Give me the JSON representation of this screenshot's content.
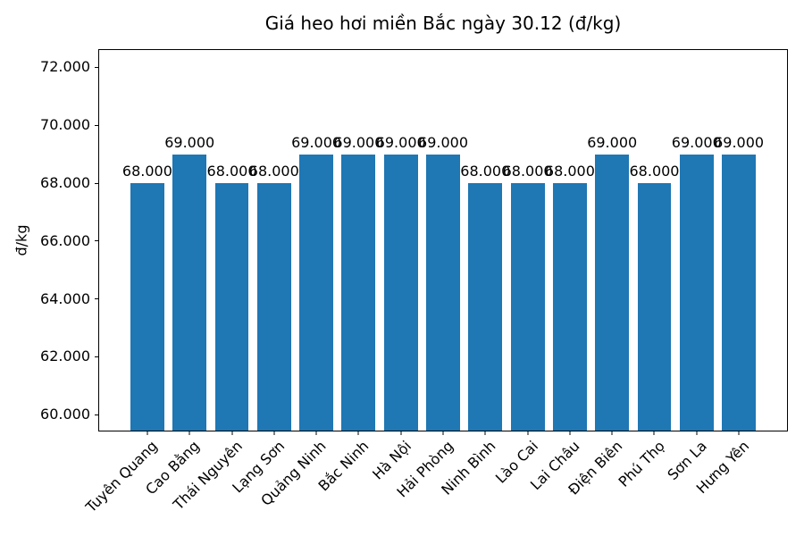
{
  "chart_data": {
    "type": "bar",
    "title": "Giá heo hơi miền Bắc ngày 30.12 (đ/kg)",
    "ylabel": "đ/kg",
    "xlabel": "",
    "categories": [
      "Tuyên Quang",
      "Cao Bằng",
      "Thái Nguyên",
      "Lạng Sơn",
      "Quảng Ninh",
      "Bắc Ninh",
      "Hà Nội",
      "Hải Phòng",
      "Ninh Bình",
      "Lào Cai",
      "Lai Châu",
      "Điện Biên",
      "Phú Thọ",
      "Sơn La",
      "Hưng Yên"
    ],
    "values": [
      68000,
      69000,
      68000,
      68000,
      69000,
      69000,
      69000,
      69000,
      68000,
      68000,
      68000,
      69000,
      68000,
      69000,
      69000
    ],
    "bar_labels": [
      "68.000",
      "69.000",
      "68.000",
      "68.000",
      "69.000",
      "69.000",
      "69.000",
      "69.000",
      "68.000",
      "68.000",
      "68.000",
      "69.000",
      "68.000",
      "69.000",
      "69.000"
    ],
    "y_ticks": [
      {
        "value": 60000,
        "label": "60.000"
      },
      {
        "value": 62000,
        "label": "62.000"
      },
      {
        "value": 64000,
        "label": "64.000"
      },
      {
        "value": 66000,
        "label": "66.000"
      },
      {
        "value": 68000,
        "label": "68.000"
      },
      {
        "value": 70000,
        "label": "70.000"
      },
      {
        "value": 72000,
        "label": "72.000"
      }
    ],
    "ylim": [
      59450,
      72600
    ],
    "bar_color": "#1f77b4",
    "bar_width_ratio": 0.8,
    "x_margin_ratio": 0.05,
    "x_tick_rotation_deg": 45,
    "grid": false,
    "legend_position": "none"
  }
}
